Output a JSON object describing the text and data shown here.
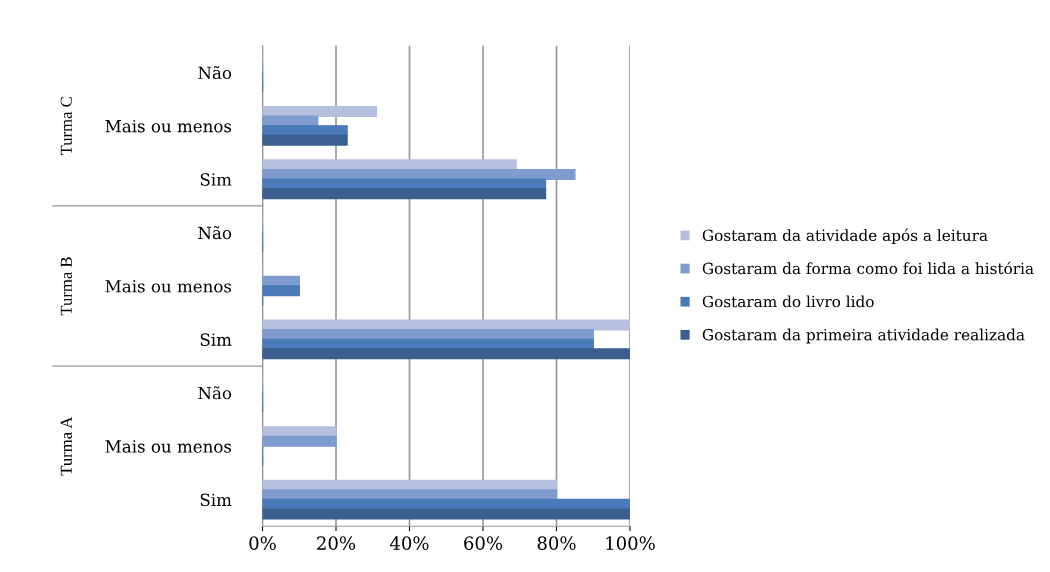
{
  "chart_data": {
    "type": "bar",
    "orientation": "horizontal",
    "categories": [
      "Não",
      "Mais ou menos",
      "Sim",
      "Não",
      "Mais ou menos",
      "Sim",
      "Não",
      "Mais ou menos",
      "Sim"
    ],
    "series": [
      {
        "name": "Gostaram da atividade após a leitura",
        "color": "#b4c0de",
        "values": [
          0,
          31,
          69,
          0,
          0,
          100,
          0,
          20,
          80
        ]
      },
      {
        "name": "Gostaram da forma como foi lida a história",
        "color": "#7f9ccf",
        "values": [
          0,
          15,
          85,
          0,
          10,
          90,
          0,
          20,
          80
        ]
      },
      {
        "name": "Gostaram do livro lido",
        "color": "#4a7ab8",
        "values": [
          0,
          23,
          77,
          0,
          10,
          90,
          0,
          0,
          100
        ]
      },
      {
        "name": "Gostaram da primeira atividade realizada",
        "color": "#3a5f8f",
        "values": [
          0,
          23,
          77,
          0,
          0,
          100,
          0,
          0,
          100
        ]
      }
    ],
    "annotations": [
      "Turma C",
      "Turma B",
      "Turma A"
    ],
    "xlim": [
      0,
      100
    ],
    "xticks": [
      {
        "value": 0,
        "label": "0%"
      },
      {
        "value": 20,
        "label": "20%"
      },
      {
        "value": 40,
        "label": "40%"
      },
      {
        "value": 60,
        "label": "60%"
      },
      {
        "value": 80,
        "label": "80%"
      },
      {
        "value": 100,
        "label": "100%"
      }
    ],
    "grid": "x",
    "legend": "right"
  }
}
